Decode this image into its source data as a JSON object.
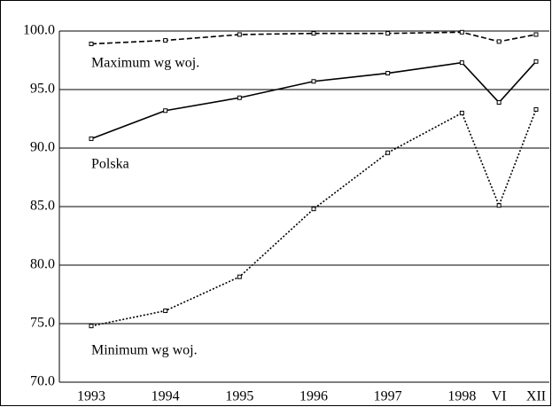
{
  "chart_data": {
    "type": "line",
    "categories": [
      "1993",
      "1994",
      "1995",
      "1996",
      "1997",
      "1998",
      "VI",
      "XII"
    ],
    "series": [
      {
        "name": "Maximum wg woj.",
        "color": "#000000",
        "dash": "dashed",
        "values": [
          98.9,
          99.2,
          99.7,
          99.8,
          99.8,
          99.9,
          99.1,
          99.7
        ]
      },
      {
        "name": "Polska",
        "color": "#000000",
        "dash": "solid",
        "values": [
          90.8,
          93.2,
          94.3,
          95.7,
          96.4,
          97.3,
          93.9,
          97.4
        ]
      },
      {
        "name": "Minimum wg woj.",
        "color": "#000000",
        "dash": "dotted",
        "values": [
          74.8,
          76.1,
          79.0,
          84.8,
          89.6,
          93.0,
          85.1,
          93.3
        ]
      }
    ],
    "ylim": [
      70,
      100
    ],
    "yticks": [
      {
        "value": 70,
        "label": "70.0"
      },
      {
        "value": 75,
        "label": "75.0"
      },
      {
        "value": 80,
        "label": "80.0"
      },
      {
        "value": 85,
        "label": "85.0"
      },
      {
        "value": 90,
        "label": "90.0"
      },
      {
        "value": 95,
        "label": "95.0"
      },
      {
        "value": 100,
        "label": "100.0"
      }
    ],
    "grid": true
  }
}
